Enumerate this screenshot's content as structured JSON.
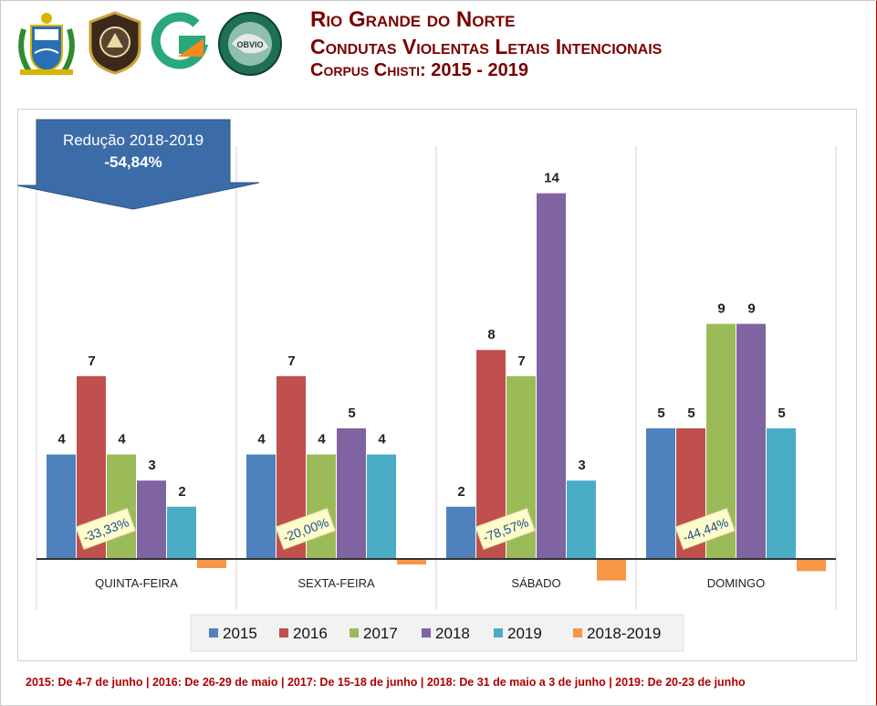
{
  "header": {
    "title_line1": "Rio Grande do Norte",
    "title_line2": "Condutas Violentas Letais Intencionais",
    "title_line3": "Corpus Chisti: 2015 - 2019"
  },
  "logos": {
    "logo1": "rn-coat-of-arms",
    "logo2": "police-badge",
    "logo3": "green-orange-emblem",
    "logo4": "observatory-emblem"
  },
  "callout": {
    "label": "Redução 2018-2019",
    "value": "-54,84%"
  },
  "colors": {
    "2015": "#4f81bd",
    "2016": "#c0504d",
    "2017": "#9bbb59",
    "2018": "#8064a2",
    "2019": "#4bacc6",
    "2018-2019": "#f79646",
    "callout": "#3c6ca8",
    "title": "#7a0000",
    "footnote": "#b00000"
  },
  "chart_data": {
    "type": "bar",
    "categories": [
      "QUINTA-FEIRA",
      "SEXTA-FEIRA",
      "SÁBADO",
      "DOMINGO"
    ],
    "series": [
      {
        "name": "2015",
        "values": [
          4,
          4,
          2,
          5
        ]
      },
      {
        "name": "2016",
        "values": [
          7,
          7,
          8,
          5
        ]
      },
      {
        "name": "2017",
        "values": [
          4,
          4,
          7,
          9
        ]
      },
      {
        "name": "2018",
        "values": [
          3,
          5,
          14,
          9
        ]
      },
      {
        "name": "2019",
        "values": [
          2,
          4,
          3,
          5
        ]
      },
      {
        "name": "2018-2019",
        "values": [
          -0.333,
          -0.2,
          -0.786,
          -0.444
        ]
      }
    ],
    "variation_labels": [
      "-33,33%",
      "-20,00%",
      "-78,57%",
      "-44,44%"
    ],
    "ylim": [
      -1,
      16
    ],
    "legend": "bottom",
    "grid": false
  },
  "footnote": "2015: De 4-7 de junho | 2016: De 26-29 de maio | 2017: De 15-18 de junho | 2018: De 31 de maio a 3 de junho | 2019: De 20-23 de junho"
}
